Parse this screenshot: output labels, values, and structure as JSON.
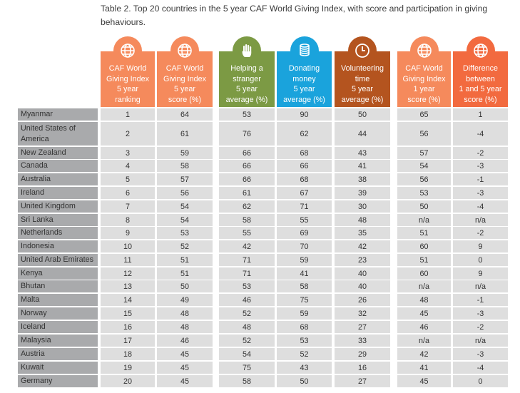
{
  "caption": "Table 2. Top 20 countries in the 5 year CAF World Giving Index, with score and participation in giving behaviours.",
  "colors": {
    "orange": "#f58a5c",
    "green": "#7c9a44",
    "blue": "#1aa3dc",
    "brown": "#b4541f",
    "deep_orange": "#f26a3f",
    "country_bg": "#a9aaac",
    "cell_bg": "#dedede"
  },
  "headers": [
    {
      "label": "CAF World\nGiving Index\n5 year\nranking",
      "icon": "globe-icon"
    },
    {
      "label": "CAF World\nGiving Index\n5 year\nscore (%)",
      "icon": "globe-icon"
    },
    {
      "label": "Helping a\nstranger\n5 year\naverage (%)",
      "icon": "raised-hand-icon"
    },
    {
      "label": "Donating\nmoney\n5 year\naverage (%)",
      "icon": "coin-stack-icon"
    },
    {
      "label": "Volunteering\ntime\n5 year\naverage (%)",
      "icon": "clock-icon"
    },
    {
      "label": "CAF World\nGiving Index\n1 year\nscore (%)",
      "icon": "globe-icon"
    },
    {
      "label": "Difference\nbetween\n1 and 5 year\nscore (%)",
      "icon": "globe-icon"
    }
  ],
  "rows": [
    {
      "country": "Myanmar",
      "values": [
        "1",
        "64",
        "53",
        "90",
        "50",
        "65",
        "1"
      ]
    },
    {
      "country": "United States of America",
      "values": [
        "2",
        "61",
        "76",
        "62",
        "44",
        "56",
        "-4"
      ]
    },
    {
      "country": "New Zealand",
      "values": [
        "3",
        "59",
        "66",
        "68",
        "43",
        "57",
        "-2"
      ]
    },
    {
      "country": "Canada",
      "values": [
        "4",
        "58",
        "66",
        "66",
        "41",
        "54",
        "-3"
      ]
    },
    {
      "country": "Australia",
      "values": [
        "5",
        "57",
        "66",
        "68",
        "38",
        "56",
        "-1"
      ]
    },
    {
      "country": "Ireland",
      "values": [
        "6",
        "56",
        "61",
        "67",
        "39",
        "53",
        "-3"
      ]
    },
    {
      "country": "United Kingdom",
      "values": [
        "7",
        "54",
        "62",
        "71",
        "30",
        "50",
        "-4"
      ]
    },
    {
      "country": "Sri Lanka",
      "values": [
        "8",
        "54",
        "58",
        "55",
        "48",
        "n/a",
        "n/a"
      ]
    },
    {
      "country": "Netherlands",
      "values": [
        "9",
        "53",
        "55",
        "69",
        "35",
        "51",
        "-2"
      ]
    },
    {
      "country": "Indonesia",
      "values": [
        "10",
        "52",
        "42",
        "70",
        "42",
        "60",
        "9"
      ]
    },
    {
      "country": "United Arab Emirates",
      "values": [
        "11",
        "51",
        "71",
        "59",
        "23",
        "51",
        "0"
      ]
    },
    {
      "country": "Kenya",
      "values": [
        "12",
        "51",
        "71",
        "41",
        "40",
        "60",
        "9"
      ]
    },
    {
      "country": "Bhutan",
      "values": [
        "13",
        "50",
        "53",
        "58",
        "40",
        "n/a",
        "n/a"
      ]
    },
    {
      "country": "Malta",
      "values": [
        "14",
        "49",
        "46",
        "75",
        "26",
        "48",
        "-1"
      ]
    },
    {
      "country": "Norway",
      "values": [
        "15",
        "48",
        "52",
        "59",
        "32",
        "45",
        "-3"
      ]
    },
    {
      "country": "Iceland",
      "values": [
        "16",
        "48",
        "48",
        "68",
        "27",
        "46",
        "-2"
      ]
    },
    {
      "country": "Malaysia",
      "values": [
        "17",
        "46",
        "52",
        "53",
        "33",
        "n/a",
        "n/a"
      ]
    },
    {
      "country": "Austria",
      "values": [
        "18",
        "45",
        "54",
        "52",
        "29",
        "42",
        "-3"
      ]
    },
    {
      "country": "Kuwait",
      "values": [
        "19",
        "45",
        "75",
        "43",
        "16",
        "41",
        "-4"
      ]
    },
    {
      "country": "Germany",
      "values": [
        "20",
        "45",
        "58",
        "50",
        "27",
        "45",
        "0"
      ]
    }
  ]
}
